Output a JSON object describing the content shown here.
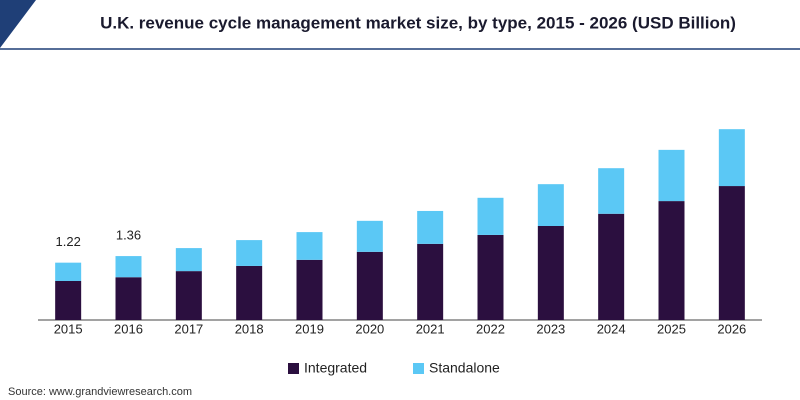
{
  "chart_data": {
    "type": "stacked_bar",
    "title": "U.K. revenue cycle management market size, by type, 2015 - 2026 (USD Billion)",
    "source": "Source: www.grandviewresearch.com",
    "categories": [
      "2015",
      "2016",
      "2017",
      "2018",
      "2019",
      "2020",
      "2021",
      "2022",
      "2023",
      "2024",
      "2025",
      "2026"
    ],
    "series": [
      {
        "name": "Integrated",
        "color": "#2b0f3f",
        "values": [
          0.83,
          0.91,
          1.04,
          1.15,
          1.28,
          1.45,
          1.62,
          1.81,
          2.0,
          2.26,
          2.53,
          2.85
        ]
      },
      {
        "name": "Standalone",
        "color": "#5bc8f5",
        "values": [
          0.39,
          0.45,
          0.49,
          0.55,
          0.59,
          0.66,
          0.7,
          0.79,
          0.89,
          0.97,
          1.09,
          1.21
        ]
      }
    ],
    "annotations": [
      {
        "x": "2015",
        "value": 1.22
      },
      {
        "x": "2016",
        "value": 1.36
      }
    ],
    "legend": "bottom"
  }
}
